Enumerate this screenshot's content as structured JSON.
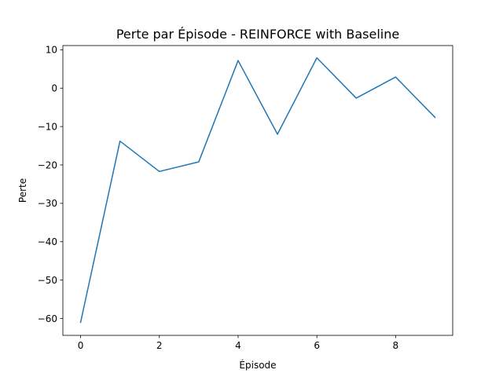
{
  "chart_data": {
    "type": "line",
    "title": "Perte par Épisode - REINFORCE with Baseline",
    "xlabel": "Épisode",
    "ylabel": "Perte",
    "x": [
      0,
      1,
      2,
      3,
      4,
      5,
      6,
      7,
      8,
      9
    ],
    "series": [
      {
        "values": [
          -61.0,
          -13.8,
          -21.7,
          -19.2,
          7.2,
          -12.0,
          7.9,
          -2.6,
          2.9,
          -7.6
        ],
        "color": "#1f77b4"
      }
    ],
    "xlim": [
      -0.45,
      9.45
    ],
    "ylim": [
      -64.4,
      11.1
    ],
    "xticks": [
      0,
      2,
      4,
      6,
      8
    ],
    "xtick_labels": [
      "0",
      "2",
      "4",
      "6",
      "8"
    ],
    "yticks": [
      -60,
      -50,
      -40,
      -30,
      -20,
      -10,
      0,
      10
    ],
    "ytick_labels": [
      "−60",
      "−50",
      "−40",
      "−30",
      "−20",
      "−10",
      "0",
      "10"
    ],
    "grid": false,
    "legend": "none"
  }
}
